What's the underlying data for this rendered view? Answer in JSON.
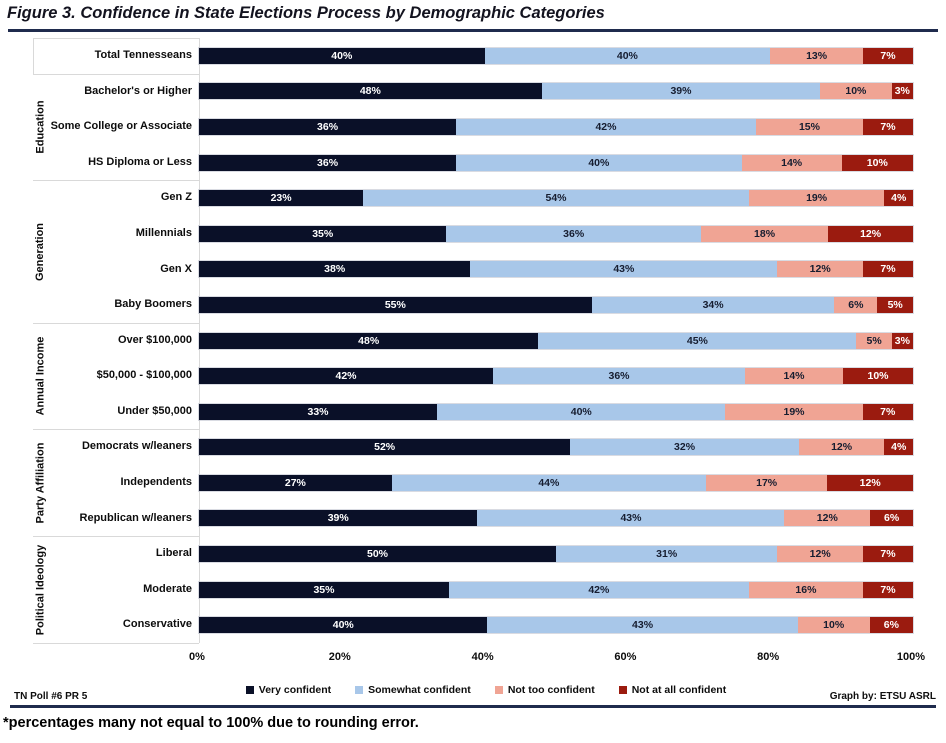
{
  "title": "Figure 3. Confidence in State Elections Process by Demographic Categories",
  "footnote": "*percentages many not equal to 100% due to rounding error.",
  "footer": {
    "left": "TN Poll #6 PR 5",
    "right": "Graph by: ETSU ASRL"
  },
  "colors": {
    "very_confident": "#0a1028",
    "somewhat_confident": "#a8c7e9",
    "not_too_confident": "#f0a494",
    "not_at_all_confident": "#9b1b0f",
    "label_on_dark": "#ffffff",
    "label_on_light": "#161d30",
    "divider": "#d9d9d9",
    "rule": "#1f2b4d"
  },
  "chart_data": {
    "type": "bar",
    "stacked": true,
    "normalized": true,
    "orientation": "horizontal",
    "xlim": [
      0,
      100
    ],
    "x_ticks": [
      "0%",
      "20%",
      "40%",
      "60%",
      "80%",
      "100%"
    ],
    "series_names": [
      "Very confident",
      "Somewhat confident",
      "Not too confident",
      "Not at all confident"
    ],
    "legend_position": "bottom",
    "groups": [
      {
        "label": "",
        "rows": [
          {
            "label": "Total Tennesseans",
            "values": [
              40,
              40,
              13,
              7
            ]
          }
        ]
      },
      {
        "label": "Education",
        "rows": [
          {
            "label": "Bachelor's or Higher",
            "values": [
              48,
              39,
              10,
              3
            ]
          },
          {
            "label": "Some College or Associate",
            "values": [
              36,
              42,
              15,
              7
            ]
          },
          {
            "label": "HS Diploma or Less",
            "values": [
              36,
              40,
              14,
              10
            ]
          }
        ]
      },
      {
        "label": "Generation",
        "rows": [
          {
            "label": "Gen Z",
            "values": [
              23,
              54,
              19,
              4
            ]
          },
          {
            "label": "Millennials",
            "values": [
              35,
              36,
              18,
              12
            ]
          },
          {
            "label": "Gen X",
            "values": [
              38,
              43,
              12,
              7
            ]
          },
          {
            "label": "Baby Boomers",
            "values": [
              55,
              34,
              6,
              5
            ]
          }
        ]
      },
      {
        "label": "Annual Income",
        "rows": [
          {
            "label": "Over $100,000",
            "values": [
              48,
              45,
              5,
              3
            ]
          },
          {
            "label": "$50,000 - $100,000",
            "values": [
              42,
              36,
              14,
              10
            ]
          },
          {
            "label": "Under $50,000",
            "values": [
              33,
              40,
              19,
              7
            ]
          }
        ]
      },
      {
        "label": "Party Affiliation",
        "rows": [
          {
            "label": "Democrats w/leaners",
            "values": [
              52,
              32,
              12,
              4
            ]
          },
          {
            "label": "Independents",
            "values": [
              27,
              44,
              17,
              12
            ]
          },
          {
            "label": "Republican w/leaners",
            "values": [
              39,
              43,
              12,
              6
            ]
          }
        ]
      },
      {
        "label": "Political Ideology",
        "rows": [
          {
            "label": "Liberal",
            "values": [
              50,
              31,
              12,
              7
            ]
          },
          {
            "label": "Moderate",
            "values": [
              35,
              42,
              16,
              7
            ]
          },
          {
            "label": "Conservative",
            "values": [
              40,
              43,
              10,
              6
            ]
          }
        ]
      }
    ]
  }
}
